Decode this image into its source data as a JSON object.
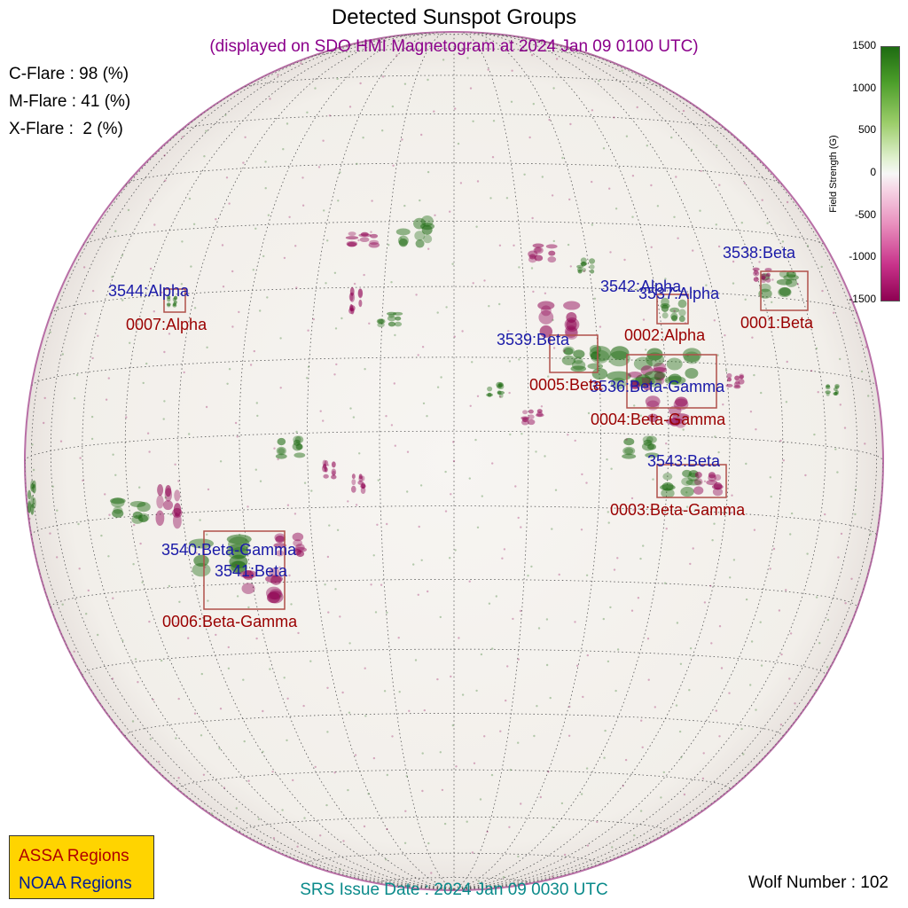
{
  "header": {
    "title": "Detected Sunspot Groups",
    "subtitle": "(displayed on SDO HMI Magnetogram at 2024 Jan 09 0100 UTC)"
  },
  "flare_probabilities": {
    "c_flare": "C-Flare : 98 (%)",
    "m_flare": "M-Flare : 41 (%)",
    "x_flare": "X-Flare :  2 (%)"
  },
  "colorbar": {
    "label": "Field Strength (G)",
    "ticks": [
      "1500",
      "1000",
      "500",
      "0",
      "-500",
      "-1000",
      "-1500"
    ],
    "positive_color": "#1e6b12",
    "negative_color": "#8e0152"
  },
  "regions": {
    "noaa": [
      {
        "label": "3538:Beta"
      },
      {
        "label": "3542:Alpha"
      },
      {
        "label": "3537:Alpha"
      },
      {
        "label": "3539:Beta"
      },
      {
        "label": "3536:Beta-Gamma"
      },
      {
        "label": "3543:Beta"
      },
      {
        "label": "3544:Alpha"
      },
      {
        "label": "3540:Beta-Gamma"
      },
      {
        "label": "3541:Beta"
      }
    ],
    "assa": [
      {
        "label": "0001:Beta"
      },
      {
        "label": "0002:Alpha"
      },
      {
        "label": "0005:Beta"
      },
      {
        "label": "0004:Beta-Gamma"
      },
      {
        "label": "0003:Beta-Gamma"
      },
      {
        "label": "0007:Alpha"
      },
      {
        "label": "0006:Beta-Gamma"
      }
    ]
  },
  "legend": {
    "assa": "ASSA Regions",
    "noaa": "NOAA Regions",
    "background": "#ffd400"
  },
  "footer": {
    "srs_issue": "SRS Issue Date : 2024 Jan 09 0030 UTC",
    "wolf_number": "Wolf Number : 102"
  }
}
